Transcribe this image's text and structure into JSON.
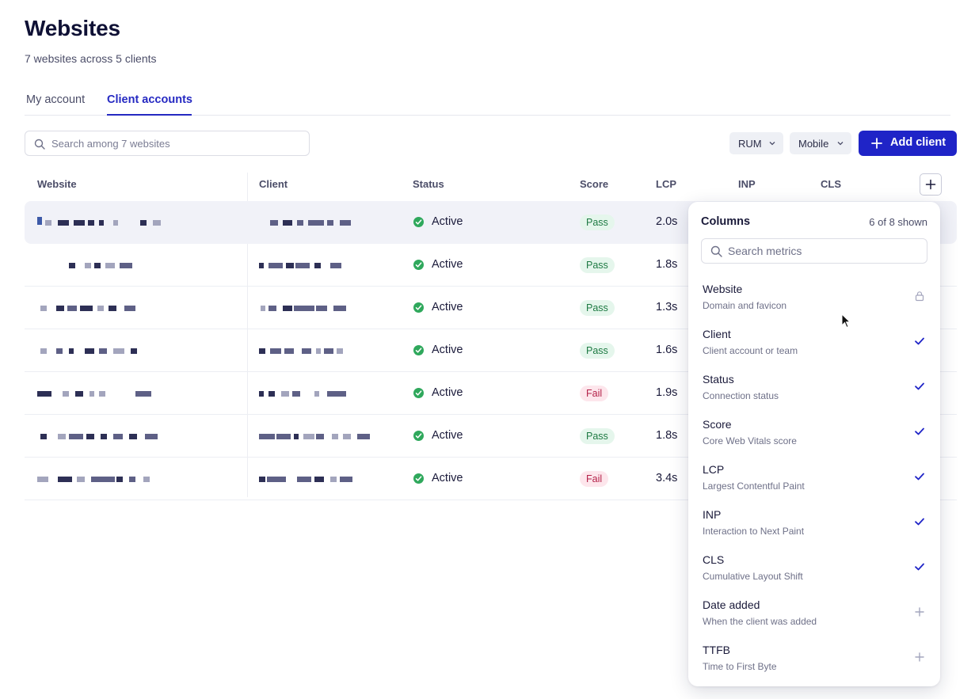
{
  "page": {
    "title": "Websites",
    "subtitle": "7 websites across 5 clients"
  },
  "tabs": [
    {
      "label": "My account",
      "active": false
    },
    {
      "label": "Client accounts",
      "active": true
    }
  ],
  "search": {
    "placeholder": "Search among 7 websites"
  },
  "filters": {
    "rum": "RUM",
    "device": "Mobile"
  },
  "add_button": {
    "label": "Add client"
  },
  "table": {
    "headers": {
      "website": "Website",
      "client": "Client",
      "status": "Status",
      "score": "Score",
      "lcp": "LCP",
      "inp": "INP",
      "cls": "CLS"
    },
    "rows": [
      {
        "status": "Active",
        "score": "Pass",
        "lcp": "2.0s",
        "highlighted": true
      },
      {
        "status": "Active",
        "score": "Pass",
        "lcp": "1.8s"
      },
      {
        "status": "Active",
        "score": "Pass",
        "lcp": "1.3s"
      },
      {
        "status": "Active",
        "score": "Pass",
        "lcp": "1.6s"
      },
      {
        "status": "Active",
        "score": "Fail",
        "lcp": "1.9s"
      },
      {
        "status": "Active",
        "score": "Pass",
        "lcp": "1.8s"
      },
      {
        "status": "Active",
        "score": "Fail",
        "lcp": "3.4s"
      }
    ]
  },
  "columns_panel": {
    "title": "Columns",
    "count": "6 of 8 shown",
    "search_placeholder": "Search metrics",
    "metrics": [
      {
        "name": "Website",
        "desc": "Domain and favicon",
        "state": "locked"
      },
      {
        "name": "Client",
        "desc": "Client account or team",
        "state": "checked"
      },
      {
        "name": "Status",
        "desc": "Connection status",
        "state": "checked"
      },
      {
        "name": "Score",
        "desc": "Core Web Vitals score",
        "state": "checked"
      },
      {
        "name": "LCP",
        "desc": "Largest Contentful Paint",
        "state": "checked"
      },
      {
        "name": "INP",
        "desc": "Interaction to Next Paint",
        "state": "checked"
      },
      {
        "name": "CLS",
        "desc": "Cumulative Layout Shift",
        "state": "checked"
      },
      {
        "name": "Date added",
        "desc": "When the client was added",
        "state": "add"
      },
      {
        "name": "TTFB",
        "desc": "Time to First Byte",
        "state": "add"
      }
    ]
  },
  "colors": {
    "accent": "#1f24c7",
    "active": "#2fa85c",
    "pass_bg": "#e5f6ec",
    "fail_bg": "#fde6ec"
  },
  "icons": {
    "search": "search-icon",
    "plus": "plus-icon",
    "chevron": "chevron-down-icon",
    "check": "check-icon",
    "lock": "lock-icon"
  }
}
